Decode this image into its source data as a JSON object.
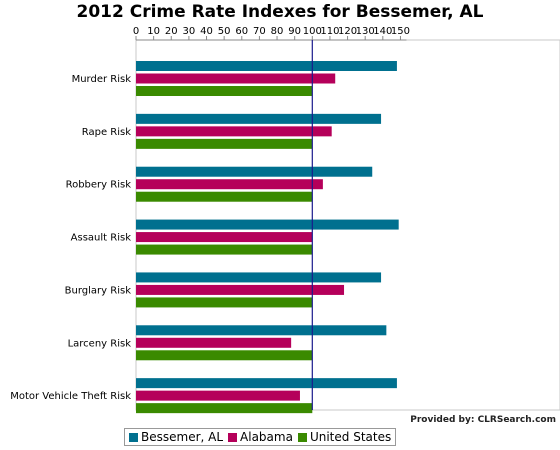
{
  "chart_data": {
    "type": "bar",
    "orientation": "horizontal",
    "title": "2012 Crime Rate Indexes for Bessemer, AL",
    "categories": [
      "Murder Risk",
      "Rape Risk",
      "Robbery Risk",
      "Assault Risk",
      "Burglary Risk",
      "Larceny Risk",
      "Motor Vehicle Theft Risk"
    ],
    "series": [
      {
        "name": "Bessemer, AL",
        "color": "#00708f",
        "values": [
          148,
          139,
          134,
          149,
          139,
          142,
          148
        ]
      },
      {
        "name": "Alabama",
        "color": "#b5005a",
        "values": [
          113,
          111,
          106,
          100,
          118,
          88,
          93
        ]
      },
      {
        "name": "United States",
        "color": "#3a8a00",
        "values": [
          100,
          100,
          100,
          100,
          100,
          100,
          100
        ]
      }
    ],
    "xlim": [
      0,
      150
    ],
    "x_ticks": [
      0,
      10,
      20,
      30,
      40,
      50,
      60,
      70,
      80,
      90,
      100,
      110,
      120,
      130,
      140,
      150
    ],
    "x_axis_position": "top",
    "reference_line": {
      "value": 100,
      "color": "#1a1a8c"
    },
    "legend_position": "bottom",
    "grid": false
  },
  "footer": {
    "provided_by": "Provided by: CLRSearch.com"
  }
}
